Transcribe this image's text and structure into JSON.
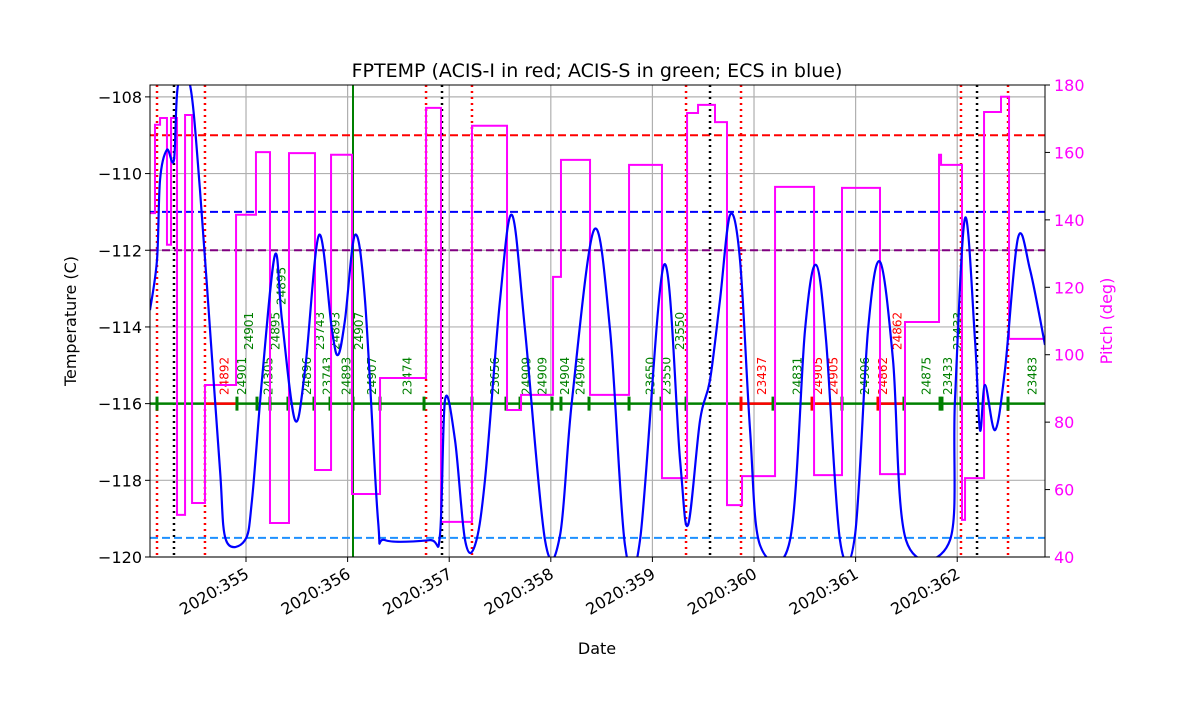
{
  "chart_data": {
    "type": "line",
    "title": "FPTEMP (ACIS-I in red; ACIS-S in green; ECS in blue)",
    "xlabel": "Date",
    "ylabel": "Temperature (C)",
    "y2label": "Pitch (deg)",
    "xlim": [
      354.055,
      362.864
    ],
    "ylim": [
      -120,
      -107.69
    ],
    "y2lim": [
      40,
      180
    ],
    "grid": true,
    "x_ticks": [
      355,
      356,
      357,
      358,
      359,
      360,
      361,
      362
    ],
    "x_tick_labels": [
      "2020:355",
      "2020:356",
      "2020:357",
      "2020:358",
      "2020:359",
      "2020:360",
      "2020:361",
      "2020:362"
    ],
    "y_ticks": [
      -120,
      -118,
      -116,
      -114,
      -112,
      -110,
      -108
    ],
    "y_tick_labels": [
      "−120",
      "−118",
      "−116",
      "−114",
      "−112",
      "−110",
      "−108"
    ],
    "y2_ticks": [
      40,
      60,
      80,
      100,
      120,
      140,
      160,
      180
    ],
    "y2_tick_labels": [
      "40",
      "60",
      "80",
      "100",
      "120",
      "140",
      "160",
      "180"
    ],
    "colors": {
      "temp": "#0000ff",
      "pitch": "#ff00ff",
      "acis_i": "#ff0000",
      "acis_s": "#008000",
      "ecs": "#0000ff",
      "grid": "#b0b0b0"
    },
    "hlines": [
      {
        "y": -109,
        "color": "#ff0000",
        "style": "dashed"
      },
      {
        "y": -111,
        "color": "#0000ff",
        "style": "dashed"
      },
      {
        "y": -112,
        "color": "#800080",
        "style": "dashed"
      },
      {
        "y": -119.5,
        "color": "#1e90ff",
        "style": "dashed"
      }
    ],
    "vlines": [
      {
        "x": 354.124,
        "color": "#ff0000",
        "style": "dotted"
      },
      {
        "x": 354.596,
        "color": "#ff0000",
        "style": "dotted"
      },
      {
        "x": 356.772,
        "color": "#ff0000",
        "style": "dotted"
      },
      {
        "x": 357.224,
        "color": "#ff0000",
        "style": "dotted"
      },
      {
        "x": 359.331,
        "color": "#ff0000",
        "style": "dotted"
      },
      {
        "x": 359.872,
        "color": "#ff0000",
        "style": "dotted"
      },
      {
        "x": 362.037,
        "color": "#ff0000",
        "style": "dotted"
      },
      {
        "x": 362.5,
        "color": "#ff0000",
        "style": "dotted"
      },
      {
        "x": 354.291,
        "color": "#000000",
        "style": "dotted"
      },
      {
        "x": 356.929,
        "color": "#000000",
        "style": "dotted"
      },
      {
        "x": 359.567,
        "color": "#000000",
        "style": "dotted"
      },
      {
        "x": 362.195,
        "color": "#000000",
        "style": "dotted"
      },
      {
        "x": 356.053,
        "color": "#008000",
        "style": "solid"
      }
    ],
    "temperature": [
      [
        354.055,
        -113.56
      ],
      [
        354.124,
        -112.25
      ],
      [
        354.154,
        -110.16
      ],
      [
        354.222,
        -109.38
      ],
      [
        354.291,
        -109.64
      ],
      [
        354.331,
        -107.69
      ],
      [
        354.449,
        -107.69
      ],
      [
        354.547,
        -110.43
      ],
      [
        354.646,
        -114.08
      ],
      [
        354.744,
        -117.73
      ],
      [
        354.803,
        -119.56
      ],
      [
        354.99,
        -119.56
      ],
      [
        355.059,
        -118.51
      ],
      [
        355.157,
        -115.38
      ],
      [
        355.285,
        -112.12
      ],
      [
        355.354,
        -113.82
      ],
      [
        355.482,
        -116.43
      ],
      [
        355.581,
        -115.12
      ],
      [
        355.719,
        -111.6
      ],
      [
        355.846,
        -114.08
      ],
      [
        355.906,
        -114.73
      ],
      [
        355.974,
        -113.82
      ],
      [
        356.073,
        -111.6
      ],
      [
        356.171,
        -113.3
      ],
      [
        356.299,
        -119.03
      ],
      [
        356.368,
        -119.56
      ],
      [
        356.811,
        -119.56
      ],
      [
        356.909,
        -119.43
      ],
      [
        356.959,
        -115.9
      ],
      [
        357.057,
        -116.95
      ],
      [
        357.156,
        -119.56
      ],
      [
        357.254,
        -119.69
      ],
      [
        357.352,
        -117.99
      ],
      [
        357.5,
        -113.3
      ],
      [
        357.618,
        -111.08
      ],
      [
        357.746,
        -114.08
      ],
      [
        357.943,
        -119.56
      ],
      [
        358.091,
        -119.43
      ],
      [
        358.209,
        -115.9
      ],
      [
        358.425,
        -111.47
      ],
      [
        358.583,
        -114.08
      ],
      [
        358.73,
        -119.69
      ],
      [
        358.878,
        -119.56
      ],
      [
        359.114,
        -112.38
      ],
      [
        359.272,
        -117.47
      ],
      [
        359.35,
        -119.17
      ],
      [
        359.469,
        -116.43
      ],
      [
        359.567,
        -115.38
      ],
      [
        359.665,
        -113.3
      ],
      [
        359.764,
        -111.08
      ],
      [
        359.862,
        -112.25
      ],
      [
        359.961,
        -116.69
      ],
      [
        360.059,
        -119.69
      ],
      [
        360.354,
        -119.56
      ],
      [
        360.502,
        -114.08
      ],
      [
        360.61,
        -112.38
      ],
      [
        360.709,
        -114.34
      ],
      [
        360.846,
        -119.56
      ],
      [
        360.994,
        -119.43
      ],
      [
        361.122,
        -114.08
      ],
      [
        361.24,
        -112.3
      ],
      [
        361.368,
        -114.86
      ],
      [
        361.496,
        -119.56
      ],
      [
        361.929,
        -119.56
      ],
      [
        361.978,
        -115.9
      ],
      [
        362.077,
        -111.16
      ],
      [
        362.175,
        -114.34
      ],
      [
        362.224,
        -116.69
      ],
      [
        362.274,
        -115.51
      ],
      [
        362.372,
        -116.69
      ],
      [
        362.47,
        -115.12
      ],
      [
        362.598,
        -111.68
      ],
      [
        362.717,
        -112.51
      ],
      [
        362.864,
        -114.47
      ]
    ],
    "pitch_steps": [
      [
        354.055,
        142.0
      ],
      [
        354.104,
        168.2
      ],
      [
        354.154,
        170.2
      ],
      [
        354.222,
        132.6
      ],
      [
        354.262,
        170.2
      ],
      [
        354.321,
        52.5
      ],
      [
        354.4,
        171.1
      ],
      [
        354.469,
        56.0
      ],
      [
        354.596,
        91.0
      ],
      [
        354.902,
        141.5
      ],
      [
        355.098,
        160.1
      ],
      [
        355.236,
        50.1
      ],
      [
        355.423,
        159.8
      ],
      [
        355.679,
        65.8
      ],
      [
        355.837,
        159.3
      ],
      [
        356.043,
        58.7
      ],
      [
        356.319,
        93.1
      ],
      [
        356.772,
        173.2
      ],
      [
        356.919,
        50.4
      ],
      [
        357.224,
        167.9
      ],
      [
        357.569,
        83.6
      ],
      [
        357.707,
        88.1
      ],
      [
        358.022,
        123.1
      ],
      [
        358.1,
        157.8
      ],
      [
        358.386,
        88.1
      ],
      [
        358.77,
        156.3
      ],
      [
        359.094,
        63.4
      ],
      [
        359.341,
        171.7
      ],
      [
        359.449,
        174.1
      ],
      [
        359.616,
        169.0
      ],
      [
        359.734,
        55.4
      ],
      [
        359.882,
        64.0
      ],
      [
        360.207,
        149.8
      ],
      [
        360.591,
        64.3
      ],
      [
        360.866,
        149.5
      ],
      [
        361.24,
        64.6
      ],
      [
        361.486,
        109.7
      ],
      [
        361.821,
        159.3
      ],
      [
        361.841,
        156.3
      ],
      [
        362.047,
        51.0
      ],
      [
        362.077,
        63.4
      ],
      [
        362.264,
        172.0
      ],
      [
        362.431,
        176.5
      ],
      [
        362.51,
        104.7
      ],
      [
        362.864,
        104.7
      ]
    ],
    "obsid_bar_y": -116,
    "obsid_red_segments": [
      [
        354.596,
        354.911
      ],
      [
        359.872,
        360.187
      ],
      [
        360.571,
        360.866
      ],
      [
        361.22,
        361.476
      ]
    ],
    "obsid_ticks": [
      {
        "x": 354.124,
        "c": "acis_s"
      },
      {
        "x": 354.911,
        "c": "acis_s"
      },
      {
        "x": 355.108,
        "c": "acis_s"
      },
      {
        "x": 355.236,
        "c": "acis_s"
      },
      {
        "x": 355.413,
        "c": "acis_s"
      },
      {
        "x": 355.669,
        "c": "acis_s"
      },
      {
        "x": 355.827,
        "c": "acis_s"
      },
      {
        "x": 356.053,
        "c": "acis_s"
      },
      {
        "x": 356.319,
        "c": "acis_s"
      },
      {
        "x": 356.752,
        "c": "acis_s"
      },
      {
        "x": 357.224,
        "c": "acis_s"
      },
      {
        "x": 357.559,
        "c": "acis_s"
      },
      {
        "x": 357.697,
        "c": "acis_s"
      },
      {
        "x": 358.012,
        "c": "acis_s"
      },
      {
        "x": 358.1,
        "c": "acis_s"
      },
      {
        "x": 358.376,
        "c": "acis_s"
      },
      {
        "x": 358.77,
        "c": "acis_s"
      },
      {
        "x": 359.085,
        "c": "acis_s"
      },
      {
        "x": 359.331,
        "c": "acis_s"
      },
      {
        "x": 359.872,
        "c": "acis_i"
      },
      {
        "x": 360.187,
        "c": "acis_s"
      },
      {
        "x": 360.571,
        "c": "acis_i"
      },
      {
        "x": 360.866,
        "c": "acis_s"
      },
      {
        "x": 361.22,
        "c": "acis_i"
      },
      {
        "x": 361.476,
        "c": "acis_s"
      },
      {
        "x": 361.831,
        "c": "acis_s"
      },
      {
        "x": 361.85,
        "c": "acis_s"
      },
      {
        "x": 362.037,
        "c": "acis_s"
      },
      {
        "x": 362.5,
        "c": "acis_s"
      }
    ],
    "obsid_labels": [
      {
        "x": 354.79,
        "text": "24892",
        "c": "acis_i"
      },
      {
        "x": 354.96,
        "text": "24901",
        "c": "acis_s"
      },
      {
        "x": 355.03,
        "text": "24901",
        "c": "acis_s"
      },
      {
        "x": 355.22,
        "text": "24305",
        "c": "acis_s"
      },
      {
        "x": 355.29,
        "text": "24895",
        "c": "acis_s"
      },
      {
        "x": 355.35,
        "text": "24895",
        "c": "acis_s"
      },
      {
        "x": 355.6,
        "text": "24896",
        "c": "acis_s"
      },
      {
        "x": 355.73,
        "text": "23743",
        "c": "acis_s"
      },
      {
        "x": 355.8,
        "text": "23743",
        "c": "acis_s"
      },
      {
        "x": 355.88,
        "text": "24893",
        "c": "acis_s"
      },
      {
        "x": 355.99,
        "text": "24893",
        "c": "acis_s"
      },
      {
        "x": 356.11,
        "text": "24907",
        "c": "acis_s"
      },
      {
        "x": 356.24,
        "text": "24907",
        "c": "acis_s"
      },
      {
        "x": 356.59,
        "text": "23474",
        "c": "acis_s"
      },
      {
        "x": 357.45,
        "text": "23656",
        "c": "acis_s"
      },
      {
        "x": 357.76,
        "text": "24909",
        "c": "acis_s"
      },
      {
        "x": 357.92,
        "text": "24909",
        "c": "acis_s"
      },
      {
        "x": 358.14,
        "text": "24904",
        "c": "acis_s"
      },
      {
        "x": 358.29,
        "text": "24904",
        "c": "acis_s"
      },
      {
        "x": 358.98,
        "text": "23650",
        "c": "acis_s"
      },
      {
        "x": 359.14,
        "text": "23550",
        "c": "acis_s"
      },
      {
        "x": 359.27,
        "text": "23550",
        "c": "acis_s"
      },
      {
        "x": 360.08,
        "text": "23437",
        "c": "acis_i"
      },
      {
        "x": 360.43,
        "text": "24831",
        "c": "acis_s"
      },
      {
        "x": 360.63,
        "text": "24905",
        "c": "acis_i"
      },
      {
        "x": 360.78,
        "text": "24905",
        "c": "acis_i"
      },
      {
        "x": 361.09,
        "text": "24906",
        "c": "acis_s"
      },
      {
        "x": 361.27,
        "text": "24862",
        "c": "acis_i"
      },
      {
        "x": 361.41,
        "text": "24862",
        "c": "acis_i"
      },
      {
        "x": 361.7,
        "text": "24875",
        "c": "acis_s"
      },
      {
        "x": 361.91,
        "text": "23433",
        "c": "acis_s"
      },
      {
        "x": 362.01,
        "text": "23433",
        "c": "acis_s"
      },
      {
        "x": 362.74,
        "text": "23483",
        "c": "acis_s"
      }
    ]
  }
}
